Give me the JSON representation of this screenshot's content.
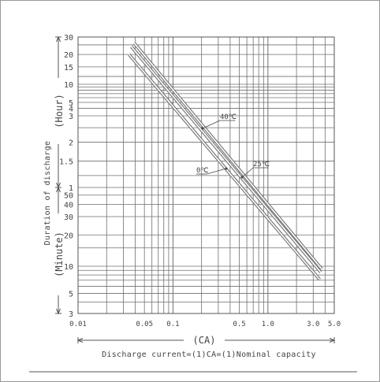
{
  "chart_data": {
    "type": "line",
    "xscale": "log",
    "xlim": [
      0.01,
      5.0
    ],
    "x_ticks": [
      "0.01",
      "0.05",
      "0.1",
      "0.5",
      "1.0",
      "3.0",
      "5.0"
    ],
    "xlabel_unit": "(CA)",
    "xlabel": "Discharge current=(1)CA=(1)Nominal capacity",
    "ylabel": "Duration of discharge",
    "y_hour_ticks": [
      "30",
      "20",
      "15",
      "10",
      "5",
      "4",
      "3",
      "2",
      "1.5",
      "1"
    ],
    "y_minute_ticks": [
      "50",
      "40",
      "30",
      "20",
      "10",
      "5",
      "3"
    ],
    "y_hour_unit": "(Hour)",
    "y_minute_unit": "(Minute)",
    "series": [
      {
        "name": "40℃",
        "points": [
          [
            0.0391,
            26.0
          ],
          [
            3.69,
            0.155
          ]
        ]
      },
      {
        "name": "25℃",
        "points": [
          [
            0.0364,
            24.0
          ],
          [
            3.6,
            0.143
          ]
        ]
      },
      {
        "name": "0℃",
        "points": [
          [
            0.0344,
            20.0
          ],
          [
            3.5,
            0.119
          ]
        ]
      }
    ],
    "grid": true,
    "colors": {
      "curve": "#7a7a7a",
      "grid": "#6f6f6f"
    }
  }
}
